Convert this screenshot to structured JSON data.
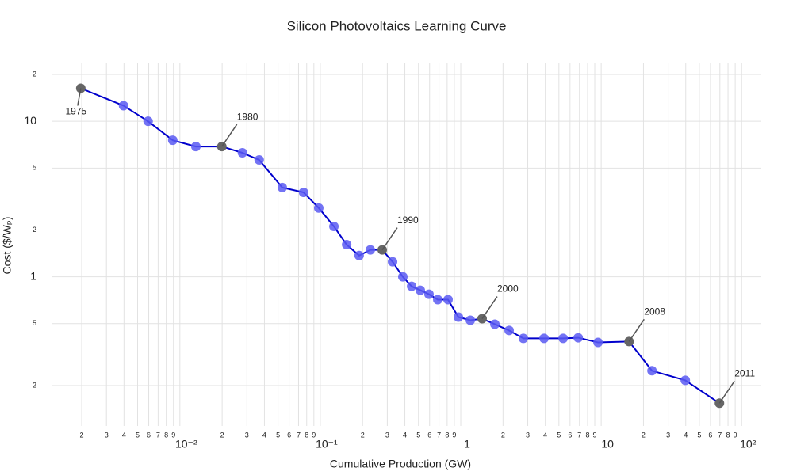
{
  "chart_data": {
    "type": "line",
    "title": "Silicon Photovoltaics Learning Curve",
    "x_label": "Cumulative Production (GW)",
    "y_label": "Cost ($/Wₚ)",
    "x": [
      0.00197,
      0.00397,
      0.00594,
      0.0089,
      0.013,
      0.0199,
      0.0279,
      0.0367,
      0.0536,
      0.076,
      0.0975,
      0.125,
      0.154,
      0.189,
      0.227,
      0.276,
      0.327,
      0.387,
      0.447,
      0.515,
      0.594,
      0.686,
      0.812,
      0.962,
      1.17,
      1.42,
      1.75,
      2.21,
      2.79,
      3.92,
      5.36,
      6.86,
      9.49,
      15.8,
      23.0,
      39.7,
      69.5
    ],
    "values": [
      16.3,
      12.6,
      10,
      7.55,
      6.88,
      6.88,
      6.27,
      5.64,
      3.75,
      3.49,
      2.77,
      2.11,
      1.61,
      1.37,
      1.49,
      1.49,
      1.25,
      1.0,
      0.869,
      0.82,
      0.773,
      0.713,
      0.713,
      0.551,
      0.526,
      0.538,
      0.496,
      0.452,
      0.402,
      0.402,
      0.402,
      0.406,
      0.379,
      0.384,
      0.249,
      0.216,
      0.154
    ],
    "line_color": "#0000cc",
    "marker_color": "#5a5af2",
    "highlight_color": "#666666",
    "annotations": [
      {
        "text": "1975",
        "x": 0.00197,
        "y": 16.3
      },
      {
        "text": "1980",
        "x": 0.0199,
        "y": 6.88
      },
      {
        "text": "1990",
        "x": 0.276,
        "y": 1.49
      },
      {
        "text": "2000",
        "x": 1.42,
        "y": 0.538
      },
      {
        "text": "2008",
        "x": 15.8,
        "y": 0.384
      },
      {
        "text": "2011",
        "x": 69.5,
        "y": 0.154
      }
    ],
    "xlog": true,
    "ylog": true,
    "grid": true,
    "xlim": [
      0.00122,
      138
    ],
    "ylim": [
      0.11,
      25
    ],
    "xticks": [
      {
        "value": 0.002,
        "label": "2"
      },
      {
        "value": 0.003,
        "label": "3"
      },
      {
        "value": 0.004,
        "label": "4"
      },
      {
        "value": 0.005,
        "label": "5"
      },
      {
        "value": 0.006,
        "label": "6"
      },
      {
        "value": 0.007,
        "label": "7"
      },
      {
        "value": 0.008,
        "label": "8"
      },
      {
        "value": 0.009,
        "label": "9"
      },
      {
        "value": 0.01,
        "label": "10⁻²"
      },
      {
        "value": 0.02,
        "label": "2"
      },
      {
        "value": 0.03,
        "label": "3"
      },
      {
        "value": 0.04,
        "label": "4"
      },
      {
        "value": 0.05,
        "label": "5"
      },
      {
        "value": 0.06,
        "label": "6"
      },
      {
        "value": 0.07,
        "label": "7"
      },
      {
        "value": 0.08,
        "label": "8"
      },
      {
        "value": 0.09,
        "label": "9"
      },
      {
        "value": 0.1,
        "label": "10⁻¹"
      },
      {
        "value": 0.2,
        "label": "2"
      },
      {
        "value": 0.3,
        "label": "3"
      },
      {
        "value": 0.4,
        "label": "4"
      },
      {
        "value": 0.5,
        "label": "5"
      },
      {
        "value": 0.6,
        "label": "6"
      },
      {
        "value": 0.7,
        "label": "7"
      },
      {
        "value": 0.8,
        "label": "8"
      },
      {
        "value": 0.9,
        "label": "9"
      },
      1,
      {
        "value": 2,
        "label": "2"
      },
      {
        "value": 3,
        "label": "3"
      },
      {
        "value": 4,
        "label": "4"
      },
      {
        "value": 5,
        "label": "5"
      },
      {
        "value": 6,
        "label": "6"
      },
      {
        "value": 7,
        "label": "7"
      },
      {
        "value": 8,
        "label": "8"
      },
      {
        "value": 9,
        "label": "9"
      },
      10,
      {
        "value": 20,
        "label": "2"
      },
      {
        "value": 30,
        "label": "3"
      },
      {
        "value": 40,
        "label": "4"
      },
      {
        "value": 50,
        "label": "5"
      },
      {
        "value": 60,
        "label": "6"
      },
      {
        "value": 70,
        "label": "7"
      },
      {
        "value": 80,
        "label": "8"
      },
      {
        "value": 90,
        "label": "9"
      },
      {
        "value": 100,
        "label": "10²"
      }
    ],
    "yticks": [
      {
        "value": 0.2,
        "label": "2"
      },
      {
        "value": 0.5,
        "label": "5"
      },
      1,
      2,
      5,
      10,
      {
        "value": 20,
        "label": "2"
      }
    ]
  }
}
